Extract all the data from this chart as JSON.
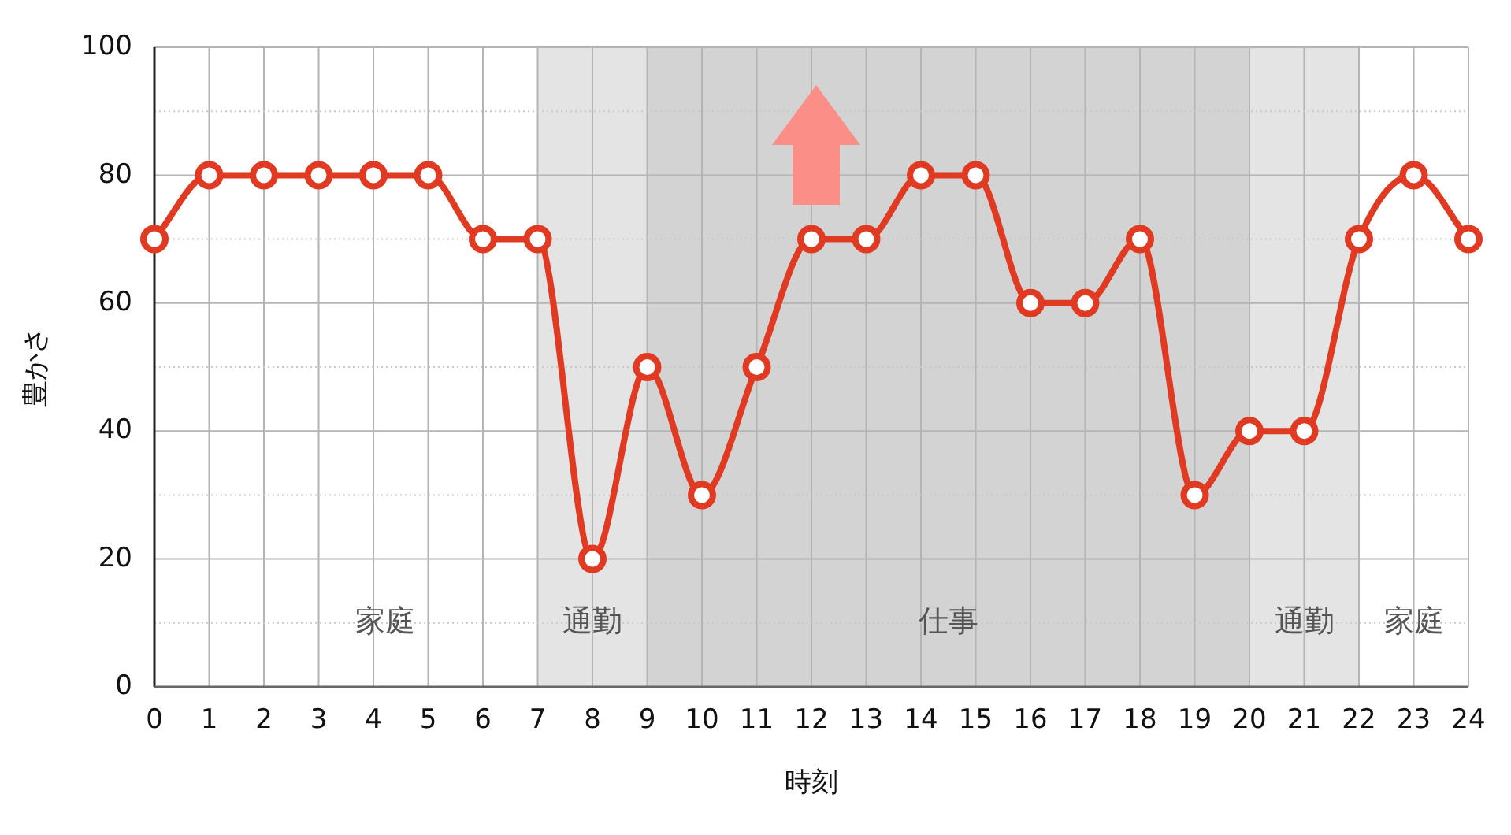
{
  "chart_data": {
    "type": "line",
    "xlabel": "時刻",
    "ylabel": "豊かさ",
    "x": [
      0,
      1,
      2,
      3,
      4,
      5,
      6,
      7,
      8,
      9,
      10,
      11,
      12,
      13,
      14,
      15,
      16,
      17,
      18,
      19,
      20,
      21,
      22,
      23,
      24
    ],
    "series": [
      {
        "color": "#e03a22",
        "values": [
          70,
          80,
          80,
          80,
          80,
          80,
          70,
          70,
          20,
          50,
          30,
          50,
          70,
          70,
          80,
          80,
          60,
          60,
          70,
          30,
          40,
          40,
          70,
          80,
          70
        ]
      }
    ],
    "xlim": [
      0,
      24
    ],
    "xticks": [
      0,
      1,
      2,
      3,
      4,
      5,
      6,
      7,
      8,
      9,
      10,
      11,
      12,
      13,
      14,
      15,
      16,
      17,
      18,
      19,
      20,
      21,
      22,
      23,
      24
    ],
    "ylim": [
      0,
      100
    ],
    "yticks": [
      0,
      20,
      40,
      60,
      80,
      100
    ],
    "annotations": [
      "家庭",
      "家庭"
    ],
    "bands": [
      {
        "axis": "x",
        "from": 7,
        "to": 9,
        "label": "通勤",
        "color": "#e4e4e4"
      },
      {
        "axis": "x",
        "from": 9,
        "to": 20,
        "label": "仕事",
        "color": "#d3d3d3"
      },
      {
        "axis": "x",
        "from": 20,
        "to": 22,
        "label": "通勤",
        "color": "#e4e4e4"
      }
    ],
    "grid": true,
    "marker": "circle",
    "line_style": "solid"
  }
}
